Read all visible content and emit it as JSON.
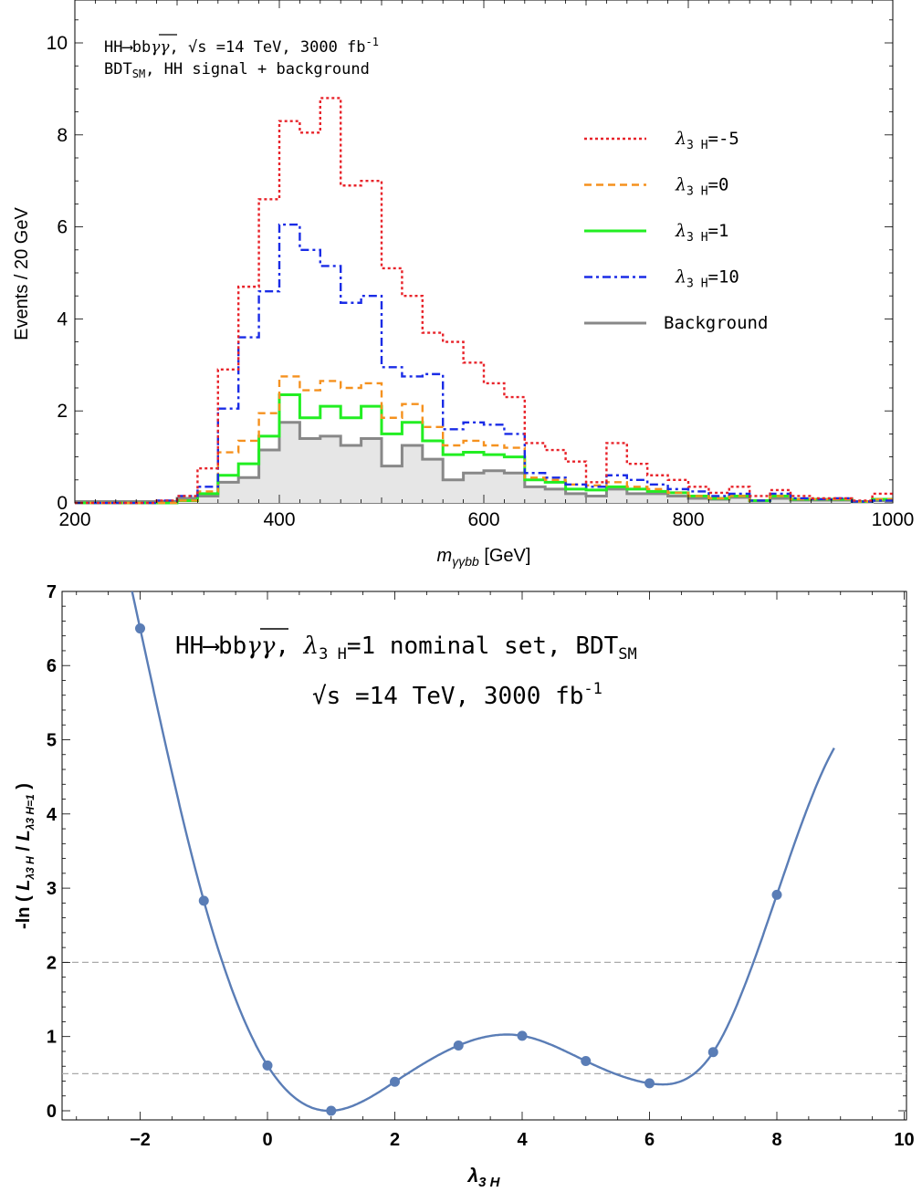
{
  "chart_data": [
    {
      "type": "histogram",
      "annotation": {
        "line1": {
          "proc": "HH",
          "arrow": "⟶",
          "bb": "bb",
          "gg": "γγ",
          "sqrts": "√s",
          "energy": " =14 TeV, 3000 fb",
          "lumi_sup": "-1"
        },
        "line2": {
          "bdt": "BDT",
          "bdt_sub": "SM",
          "rest": ", HH signal + background"
        }
      },
      "xlabel": {
        "m": "m",
        "sub": "γγbb",
        "unit": " [GeV]"
      },
      "ylabel": "Events / 20 GeV",
      "xlim": [
        200,
        1000
      ],
      "ylim": [
        0,
        11
      ],
      "xticks": [
        "200",
        "400",
        "600",
        "800",
        "1000"
      ],
      "yticks": [
        "0",
        "2",
        "4",
        "6",
        "8",
        "10"
      ],
      "bin_edges": [
        200,
        220,
        240,
        260,
        280,
        300,
        320,
        340,
        360,
        380,
        400,
        420,
        440,
        460,
        480,
        500,
        520,
        540,
        560,
        580,
        600,
        620,
        640,
        660,
        680,
        700,
        720,
        740,
        760,
        780,
        800,
        820,
        840,
        860,
        880,
        900,
        920,
        940,
        960,
        980,
        1000
      ],
      "series": [
        {
          "legend": "λ3 H=-5",
          "lambda_sym": "λ",
          "lambda_sub": "3 H",
          "lambda_val": "=-5",
          "color": "#e8232a",
          "dash": "dotted",
          "values": [
            0.0,
            0.0,
            0.0,
            0.0,
            0.05,
            0.15,
            0.75,
            2.9,
            4.7,
            6.6,
            8.3,
            8.05,
            8.8,
            6.9,
            7.0,
            5.1,
            4.5,
            3.7,
            3.5,
            3.05,
            2.6,
            2.3,
            1.3,
            1.15,
            0.9,
            0.45,
            1.3,
            0.85,
            0.6,
            0.5,
            0.35,
            0.22,
            0.35,
            0.15,
            0.28,
            0.15,
            0.1,
            0.1,
            0.05,
            0.2
          ]
        },
        {
          "legend": "λ3 H=0",
          "lambda_sym": "λ",
          "lambda_sub": "3 H",
          "lambda_val": "=0",
          "color": "#f5911e",
          "dash": "dashed",
          "values": [
            0.0,
            0.0,
            0.0,
            0.0,
            0.0,
            0.05,
            0.25,
            1.1,
            1.35,
            1.95,
            2.75,
            2.45,
            2.65,
            2.5,
            2.6,
            1.85,
            2.15,
            1.65,
            1.25,
            1.35,
            1.25,
            1.2,
            0.55,
            0.5,
            0.4,
            0.38,
            0.45,
            0.35,
            0.3,
            0.22,
            0.15,
            0.1,
            0.15,
            0.05,
            0.15,
            0.08,
            0.08,
            0.08,
            0.03,
            0.08
          ]
        },
        {
          "legend": "λ3 H=1",
          "lambda_sym": "λ",
          "lambda_sub": "3 H",
          "lambda_val": "=1",
          "color": "#22ee22",
          "dash": "solid",
          "values": [
            0.0,
            0.0,
            0.0,
            0.0,
            0.0,
            0.05,
            0.2,
            0.6,
            0.85,
            1.45,
            2.35,
            1.85,
            2.1,
            1.85,
            2.1,
            1.5,
            1.75,
            1.35,
            1.05,
            1.1,
            1.05,
            1.0,
            0.5,
            0.45,
            0.3,
            0.28,
            0.35,
            0.3,
            0.25,
            0.22,
            0.15,
            0.1,
            0.15,
            0.05,
            0.15,
            0.08,
            0.08,
            0.08,
            0.03,
            0.08
          ]
        },
        {
          "legend": "λ3 H=10",
          "lambda_sym": "λ",
          "lambda_sub": "3 H",
          "lambda_val": "=10",
          "color": "#1a2ce6",
          "dash": "dashdot",
          "values": [
            0.0,
            0.0,
            0.0,
            0.0,
            0.05,
            0.15,
            0.35,
            2.05,
            3.6,
            4.6,
            6.05,
            5.5,
            5.15,
            4.35,
            4.5,
            2.95,
            2.75,
            2.8,
            1.6,
            1.75,
            1.7,
            1.5,
            0.65,
            0.55,
            0.4,
            0.35,
            0.6,
            0.5,
            0.4,
            0.3,
            0.25,
            0.15,
            0.2,
            0.05,
            0.2,
            0.1,
            0.08,
            0.1,
            0.03,
            0.05
          ]
        },
        {
          "legend": "Background",
          "color": "#888888",
          "dash": "solid",
          "fill": "#e6e6e6",
          "values": [
            0.03,
            0.03,
            0.03,
            0.03,
            0.03,
            0.1,
            0.15,
            0.45,
            0.55,
            1.15,
            1.75,
            1.4,
            1.45,
            1.25,
            1.4,
            0.8,
            1.25,
            0.95,
            0.5,
            0.65,
            0.7,
            0.65,
            0.35,
            0.3,
            0.2,
            0.15,
            0.3,
            0.2,
            0.2,
            0.15,
            0.1,
            0.08,
            0.12,
            0.04,
            0.1,
            0.06,
            0.06,
            0.06,
            0.02,
            0.05
          ]
        }
      ]
    },
    {
      "type": "line",
      "annotation": {
        "line1": {
          "proc": "HH",
          "arrow": "⟶",
          "bb": "bb",
          "gg": "γγ",
          "sep": ", ",
          "lambda_sym": "λ",
          "lambda_sub": "3 H",
          "rest": "=1 nominal set, BDT",
          "bdt_sub": "SM"
        },
        "line2": {
          "sqrts": "√s",
          "energy": " =14 TeV, 3000 fb",
          "lumi_sup": "-1"
        }
      },
      "xlabel": {
        "sym": "λ",
        "sub": "3 H"
      },
      "ylabel": {
        "pre": "-ln ( ",
        "L": "L",
        "sub1": "λ3 H",
        "mid": " / ",
        "L2": "L",
        "sub2": "λ3 H=1",
        "post": " )"
      },
      "xlim": [
        -3.2,
        10.1
      ],
      "ylim": [
        -0.1,
        7
      ],
      "xticks": [
        "-2",
        "0",
        "2",
        "4",
        "6",
        "8",
        "10"
      ],
      "yticks": [
        "0",
        "1",
        "2",
        "3",
        "4",
        "5",
        "6",
        "7"
      ],
      "reference_lines": [
        0.5,
        2
      ],
      "points": {
        "x": [
          -2,
          -1,
          0,
          1,
          2,
          3,
          4,
          5,
          6,
          7,
          8
        ],
        "y": [
          6.5,
          2.83,
          0.61,
          0.0,
          0.39,
          0.88,
          1.01,
          0.67,
          0.37,
          0.79,
          2.91
        ]
      },
      "color": "#5a7db6"
    }
  ]
}
